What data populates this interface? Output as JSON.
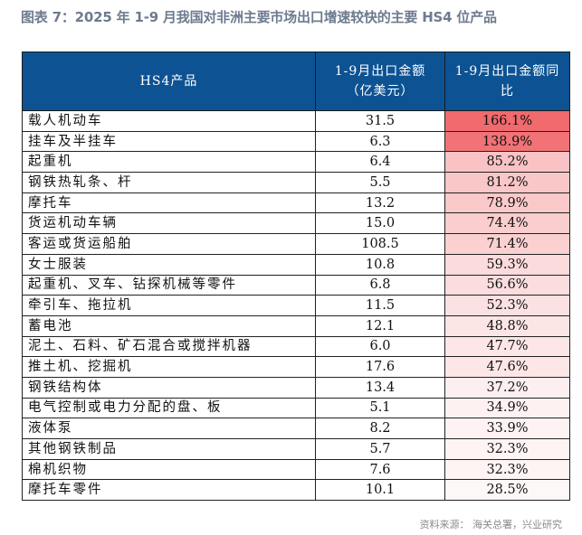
{
  "title": "图表 7：2025 年 1-9 月我国对非洲主要市场出口增速较快的主要 HS4 位产品",
  "table": {
    "headers": [
      "HS4产品",
      "1-9月出口金额（亿美元）",
      "1-9月出口金额同比"
    ],
    "rows": [
      {
        "product": "载人机动车",
        "amount": "31.5",
        "growth": "166.1%",
        "growth_value": 166.1
      },
      {
        "product": "挂车及半挂车",
        "amount": "6.3",
        "growth": "138.9%",
        "growth_value": 138.9
      },
      {
        "product": "起重机",
        "amount": "6.4",
        "growth": "85.2%",
        "growth_value": 85.2
      },
      {
        "product": "钢铁热轧条、杆",
        "amount": "5.5",
        "growth": "81.2%",
        "growth_value": 81.2
      },
      {
        "product": "摩托车",
        "amount": "13.2",
        "growth": "78.9%",
        "growth_value": 78.9
      },
      {
        "product": "货运机动车辆",
        "amount": "15.0",
        "growth": "74.4%",
        "growth_value": 74.4
      },
      {
        "product": "客运或货运船舶",
        "amount": "108.5",
        "growth": "71.4%",
        "growth_value": 71.4
      },
      {
        "product": "女士服装",
        "amount": "10.8",
        "growth": "59.3%",
        "growth_value": 59.3
      },
      {
        "product": "起重机、叉车、钻探机械等零件",
        "amount": "6.8",
        "growth": "56.6%",
        "growth_value": 56.6
      },
      {
        "product": "牵引车、拖拉机",
        "amount": "11.5",
        "growth": "52.3%",
        "growth_value": 52.3
      },
      {
        "product": "蓄电池",
        "amount": "12.1",
        "growth": "48.8%",
        "growth_value": 48.8
      },
      {
        "product": "泥土、石料、矿石混合或搅拌机器",
        "amount": "6.0",
        "growth": "47.7%",
        "growth_value": 47.7
      },
      {
        "product": "推土机、挖掘机",
        "amount": "17.6",
        "growth": "47.6%",
        "growth_value": 47.6
      },
      {
        "product": "钢铁结构体",
        "amount": "13.4",
        "growth": "37.2%",
        "growth_value": 37.2
      },
      {
        "product": "电气控制或电力分配的盘、板",
        "amount": "5.1",
        "growth": "34.9%",
        "growth_value": 34.9
      },
      {
        "product": "液体泵",
        "amount": "8.2",
        "growth": "33.9%",
        "growth_value": 33.9
      },
      {
        "product": "其他钢铁制品",
        "amount": "5.7",
        "growth": "32.3%",
        "growth_value": 32.3
      },
      {
        "product": "棉机织物",
        "amount": "7.6",
        "growth": "32.3%",
        "growth_value": 32.3
      },
      {
        "product": "摩托车零件",
        "amount": "10.1",
        "growth": "28.5%",
        "growth_value": 28.5
      }
    ]
  },
  "colors": {
    "header_bg": "#0d5394",
    "heat_high": "#f06a6e",
    "heat_low": "#ffffff"
  },
  "source": "资料来源：  海关总署，兴业研究"
}
